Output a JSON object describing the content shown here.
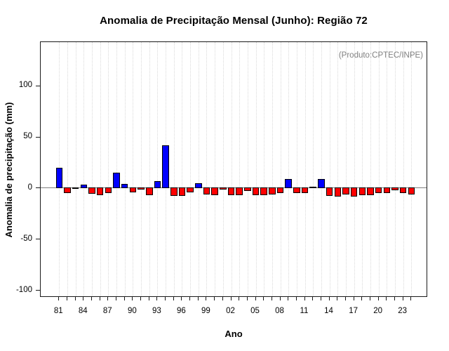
{
  "chart_data": {
    "type": "bar",
    "title": "Anomalia de Precipitação Mensal (Junho): Região 72",
    "annotation": "(Produto:CPTEC/INPE)",
    "xlabel": "Ano",
    "ylabel": "Anomalia de precipitação (mm)",
    "x": [
      1981,
      1982,
      1983,
      1984,
      1985,
      1986,
      1987,
      1988,
      1989,
      1990,
      1991,
      1992,
      1993,
      1994,
      1995,
      1996,
      1997,
      1998,
      1999,
      2000,
      2001,
      2002,
      2003,
      2004,
      2005,
      2006,
      2007,
      2008,
      2009,
      2010,
      2011,
      2012,
      2013,
      2014,
      2015,
      2016,
      2017,
      2018,
      2019,
      2020,
      2021,
      2022,
      2023,
      2024
    ],
    "values": [
      20,
      -5.5,
      -0.7,
      4,
      -6,
      -7,
      -5,
      15.5,
      4.5,
      -4.5,
      -2,
      -7,
      7,
      42,
      -8,
      -8,
      -4.5,
      5,
      -6.5,
      -7.5,
      -1.5,
      -7,
      -7.5,
      -3.5,
      -7.5,
      -7.5,
      -6.5,
      -5,
      9.5,
      -5.5,
      -5.5,
      1,
      9,
      -8,
      -9,
      -6.5,
      -9,
      -7.5,
      -7,
      -5.5,
      -5.5,
      -2.5,
      -5.5,
      -6.5
    ],
    "x_tick_years": [
      1981,
      1984,
      1987,
      1990,
      1993,
      1996,
      1999,
      2002,
      2005,
      2008,
      2011,
      2014,
      2017,
      2020,
      2023
    ],
    "x_tick_labels": [
      "81",
      "84",
      "87",
      "90",
      "93",
      "96",
      "99",
      "02",
      "05",
      "08",
      "11",
      "14",
      "17",
      "20",
      "23"
    ],
    "y_ticks": [
      -100,
      -50,
      0,
      50,
      100
    ],
    "ylim": [
      -106.9,
      143.1
    ],
    "grid": "vertical-dotted-per-year",
    "legend": "none",
    "colors": {
      "positive_bar": "#0000ff",
      "negative_bar": "#ff0000",
      "bar_border": "#000000",
      "zero_line": "#7f7f7f",
      "grid_line": "#d9d9d9",
      "annotation_text": "#808080",
      "axis": "#1a1a1a"
    }
  }
}
